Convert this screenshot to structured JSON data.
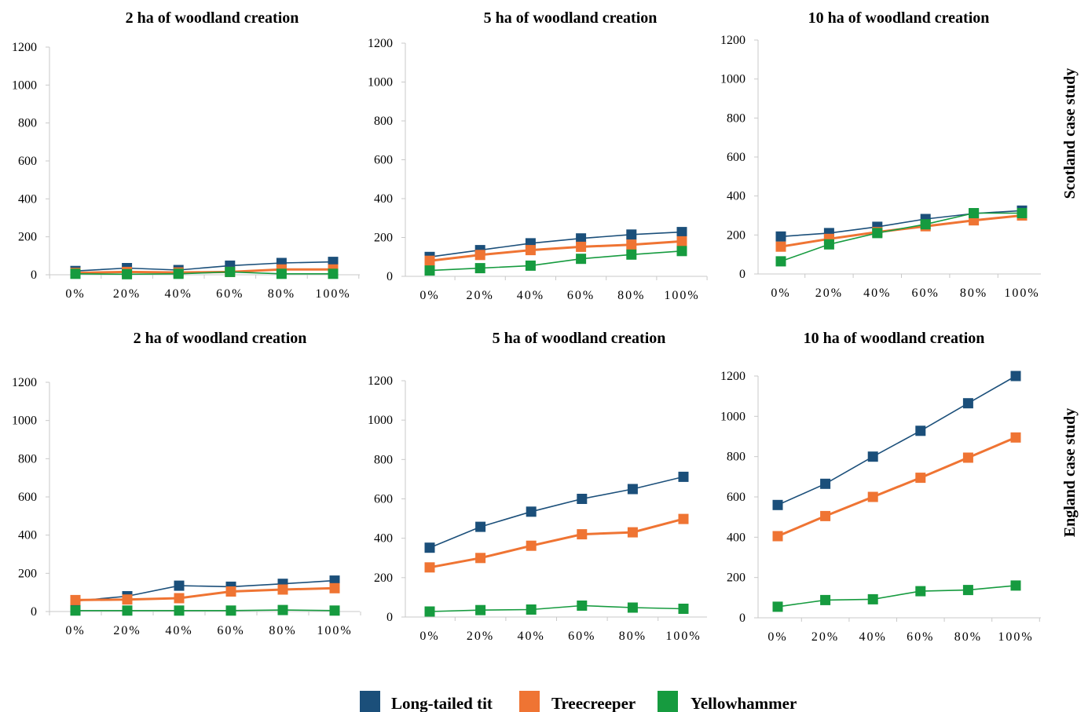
{
  "colors": {
    "long_tailed_tit": "#1b4f7a",
    "treecreeper": "#ef7433",
    "yellowhammer": "#169b3f",
    "axis": "#c9c9c9"
  },
  "row_labels": [
    "Scotland case study",
    "England case study"
  ],
  "legend": [
    "Long-tailed tit",
    "Treecreeper",
    "Yellowhammer"
  ],
  "chart_data": [
    {
      "type": "line",
      "title": "2 ha of woodland creation",
      "categories": [
        "0%",
        "20%",
        "40%",
        "60%",
        "80%",
        "100%"
      ],
      "ylim": [
        0,
        1200
      ],
      "yticks": [
        "0",
        "200",
        "400",
        "600",
        "800",
        "1000",
        "1200"
      ],
      "series": [
        {
          "name": "Long-tailed tit",
          "values": [
            20,
            35,
            25,
            48,
            62,
            68
          ]
        },
        {
          "name": "Treecreeper",
          "values": [
            10,
            15,
            12,
            15,
            28,
            28
          ]
        },
        {
          "name": "Yellowhammer",
          "values": [
            5,
            3,
            5,
            15,
            5,
            5
          ]
        }
      ]
    },
    {
      "type": "line",
      "title": "5 ha of woodland creation",
      "categories": [
        "0%",
        "20%",
        "40%",
        "60%",
        "80%",
        "100%"
      ],
      "ylim": [
        0,
        1200
      ],
      "yticks": [
        "0",
        "200",
        "400",
        "600",
        "800",
        "1000",
        "1200"
      ],
      "series": [
        {
          "name": "Long-tailed tit",
          "values": [
            100,
            135,
            170,
            195,
            215,
            228
          ]
        },
        {
          "name": "Treecreeper",
          "values": [
            80,
            110,
            135,
            152,
            163,
            180
          ]
        },
        {
          "name": "Yellowhammer",
          "values": [
            30,
            42,
            55,
            90,
            112,
            130
          ]
        }
      ]
    },
    {
      "type": "line",
      "title": "10 ha of woodland creation",
      "categories": [
        "0%",
        "20%",
        "40%",
        "60%",
        "80%",
        "100%"
      ],
      "ylim": [
        0,
        1200
      ],
      "yticks": [
        "0",
        "200",
        "400",
        "600",
        "800",
        "1000",
        "1200"
      ],
      "series": [
        {
          "name": "Long-tailed tit",
          "values": [
            192,
            210,
            242,
            282,
            310,
            325
          ]
        },
        {
          "name": "Treecreeper",
          "values": [
            140,
            180,
            215,
            245,
            275,
            300
          ]
        },
        {
          "name": "Yellowhammer",
          "values": [
            65,
            152,
            210,
            255,
            312,
            312
          ]
        }
      ]
    },
    {
      "type": "line",
      "title": "2 ha of woodland creation",
      "categories": [
        "0%",
        "20%",
        "40%",
        "60%",
        "80%",
        "100%"
      ],
      "ylim": [
        0,
        1200
      ],
      "yticks": [
        "0",
        "200",
        "400",
        "600",
        "800",
        "1000",
        "1200"
      ],
      "series": [
        {
          "name": "Long-tailed tit",
          "values": [
            55,
            80,
            135,
            130,
            145,
            162
          ]
        },
        {
          "name": "Treecreeper",
          "values": [
            60,
            63,
            70,
            105,
            115,
            122
          ]
        },
        {
          "name": "Yellowhammer",
          "values": [
            5,
            5,
            5,
            5,
            8,
            5
          ]
        }
      ]
    },
    {
      "type": "line",
      "title": "5 ha of woodland creation",
      "categories": [
        "0%",
        "20%",
        "40%",
        "60%",
        "80%",
        "100%"
      ],
      "ylim": [
        0,
        1200
      ],
      "yticks": [
        "0",
        "200",
        "400",
        "600",
        "800",
        "1000",
        "1200"
      ],
      "series": [
        {
          "name": "Long-tailed tit",
          "values": [
            352,
            458,
            535,
            600,
            650,
            712
          ]
        },
        {
          "name": "Treecreeper",
          "values": [
            252,
            300,
            362,
            420,
            430,
            498
          ]
        },
        {
          "name": "Yellowhammer",
          "values": [
            28,
            35,
            38,
            58,
            48,
            42
          ]
        }
      ]
    },
    {
      "type": "line",
      "title": "10 ha of woodland creation",
      "categories": [
        "0%",
        "20%",
        "40%",
        "60%",
        "80%",
        "100%"
      ],
      "ylim": [
        0,
        1200
      ],
      "yticks": [
        "0",
        "200",
        "400",
        "600",
        "800",
        "1000",
        "1200"
      ],
      "series": [
        {
          "name": "Long-tailed tit",
          "values": [
            560,
            665,
            800,
            928,
            1065,
            1200
          ]
        },
        {
          "name": "Treecreeper",
          "values": [
            405,
            505,
            600,
            695,
            795,
            895
          ]
        },
        {
          "name": "Yellowhammer",
          "values": [
            55,
            88,
            92,
            132,
            138,
            160
          ]
        }
      ]
    }
  ]
}
